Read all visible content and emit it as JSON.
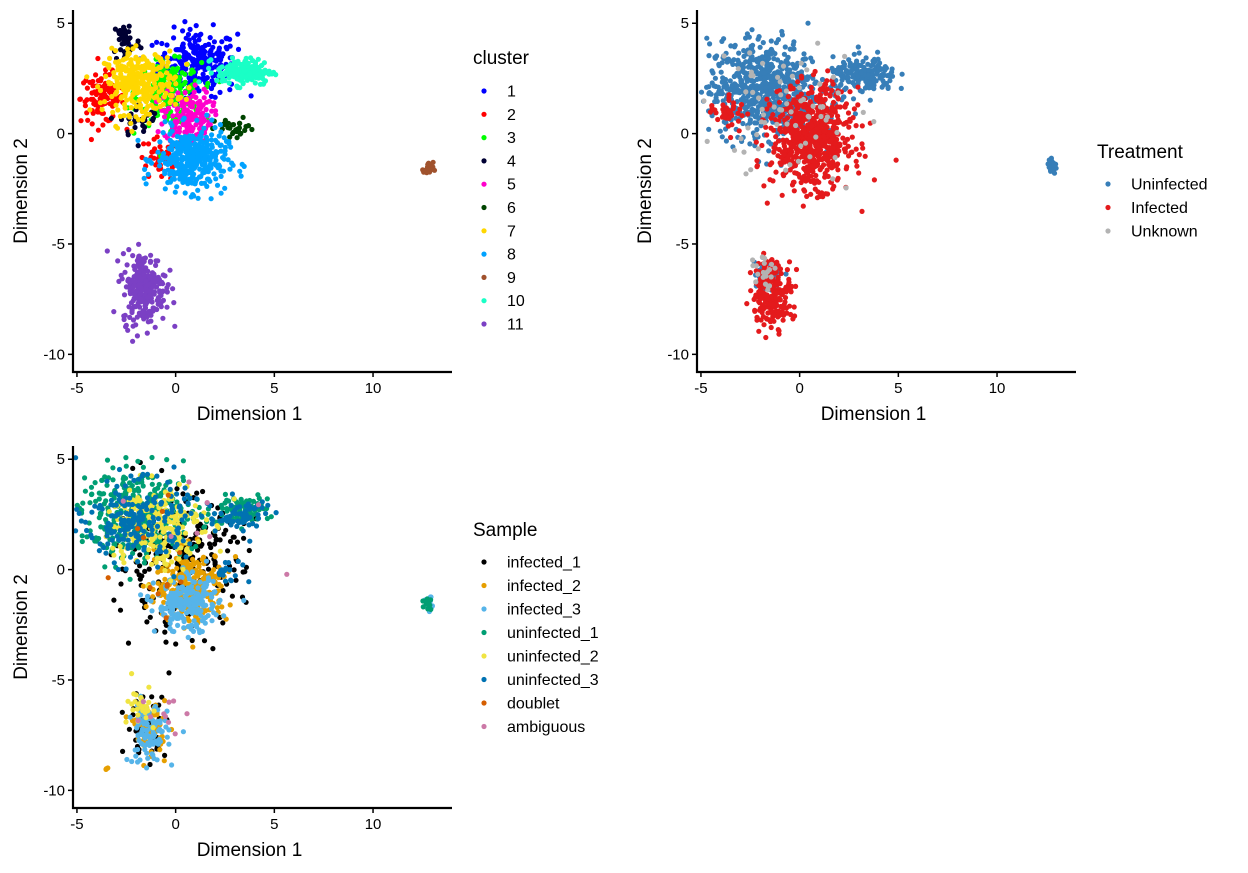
{
  "chart_data": [
    {
      "type": "scatter",
      "xlabel": "Dimension 1",
      "ylabel": "Dimension 2",
      "xlim": [
        -5.2,
        14
      ],
      "ylim": [
        -10.8,
        5.6
      ],
      "xticks": [
        "-5",
        "0",
        "5",
        "10"
      ],
      "xtick_values": [
        -5,
        0,
        5,
        10
      ],
      "yticks": [
        "5",
        "0",
        "-5",
        "-10"
      ],
      "ytick_values": [
        5,
        0,
        -5,
        -10
      ],
      "legend_title": "cluster",
      "legend_position": "right",
      "series": [
        {
          "name": "1",
          "color": "#0000ff",
          "clusters": [
            {
              "cx": 1.1,
              "cy": 3.2,
              "sx": 1.0,
              "sy": 0.75,
              "n": 260
            }
          ]
        },
        {
          "name": "2",
          "color": "#ff0000",
          "clusters": [
            {
              "cx": -3.7,
              "cy": 1.6,
              "sx": 0.55,
              "sy": 0.55,
              "n": 110
            },
            {
              "cx": -0.8,
              "cy": -1.2,
              "sx": 0.6,
              "sy": 0.5,
              "n": 40
            }
          ]
        },
        {
          "name": "3",
          "color": "#00ff00",
          "clusters": [
            {
              "cx": -0.3,
              "cy": 1.8,
              "sx": 0.8,
              "sy": 0.7,
              "n": 200
            }
          ]
        },
        {
          "name": "4",
          "color": "#000033",
          "clusters": [
            {
              "cx": -2.5,
              "cy": 4.2,
              "sx": 0.35,
              "sy": 0.5,
              "n": 45
            },
            {
              "cx": -1.8,
              "cy": 0.6,
              "sx": 0.5,
              "sy": 0.4,
              "n": 30
            }
          ]
        },
        {
          "name": "5",
          "color": "#ff00cc",
          "clusters": [
            {
              "cx": 0.6,
              "cy": 0.8,
              "sx": 0.6,
              "sy": 0.6,
              "n": 160
            }
          ]
        },
        {
          "name": "6",
          "color": "#004400",
          "clusters": [
            {
              "cx": 3.0,
              "cy": 0.2,
              "sx": 0.5,
              "sy": 0.25,
              "n": 30
            }
          ]
        },
        {
          "name": "7",
          "color": "#ffd700",
          "clusters": [
            {
              "cx": -1.8,
              "cy": 2.3,
              "sx": 0.9,
              "sy": 0.7,
              "n": 320
            }
          ]
        },
        {
          "name": "8",
          "color": "#00a2ff",
          "clusters": [
            {
              "cx": 0.8,
              "cy": -1.2,
              "sx": 0.9,
              "sy": 0.7,
              "n": 340
            }
          ]
        },
        {
          "name": "9",
          "color": "#a0522d",
          "clusters": [
            {
              "cx": 12.8,
              "cy": -1.6,
              "sx": 0.12,
              "sy": 0.15,
              "n": 25
            }
          ]
        },
        {
          "name": "10",
          "color": "#1affc6",
          "clusters": [
            {
              "cx": 3.5,
              "cy": 2.8,
              "sx": 0.7,
              "sy": 0.3,
              "n": 170
            }
          ]
        },
        {
          "name": "11",
          "color": "#7b40c4",
          "clusters": [
            {
              "cx": -1.6,
              "cy": -7.0,
              "sx": 0.55,
              "sy": 0.8,
              "n": 260
            }
          ]
        }
      ]
    },
    {
      "type": "scatter",
      "xlabel": "Dimension 1",
      "ylabel": "Dimension 2",
      "xlim": [
        -5.2,
        14
      ],
      "ylim": [
        -10.8,
        5.6
      ],
      "xticks": [
        "-5",
        "0",
        "5",
        "10"
      ],
      "xtick_values": [
        -5,
        0,
        5,
        10
      ],
      "yticks": [
        "5",
        "0",
        "-5",
        "-10"
      ],
      "ytick_values": [
        5,
        0,
        -5,
        -10
      ],
      "legend_title": "Treatment",
      "legend_position": "right",
      "series": [
        {
          "name": "Uninfected",
          "color": "#377eb8",
          "clusters": [
            {
              "cx": -1.8,
              "cy": 2.0,
              "sx": 1.4,
              "sy": 1.1,
              "n": 700
            },
            {
              "cx": 3.3,
              "cy": 2.6,
              "sx": 0.8,
              "sy": 0.4,
              "n": 180
            },
            {
              "cx": 12.8,
              "cy": -1.5,
              "sx": 0.12,
              "sy": 0.15,
              "n": 25
            },
            {
              "cx": -1.6,
              "cy": -6.6,
              "sx": 0.4,
              "sy": 0.6,
              "n": 50
            }
          ]
        },
        {
          "name": "Infected",
          "color": "#e41a1c",
          "clusters": [
            {
              "cx": 0.6,
              "cy": -0.2,
              "sx": 1.0,
              "sy": 1.1,
              "n": 700
            },
            {
              "cx": -1.4,
              "cy": -7.2,
              "sx": 0.5,
              "sy": 0.75,
              "n": 220
            },
            {
              "cx": -3.6,
              "cy": 1.0,
              "sx": 0.5,
              "sy": 0.4,
              "n": 40
            }
          ]
        },
        {
          "name": "Unknown",
          "color": "#b3b3b3",
          "clusters": [
            {
              "cx": -0.5,
              "cy": 1.0,
              "sx": 1.8,
              "sy": 1.6,
              "n": 70
            },
            {
              "cx": -2.0,
              "cy": -6.2,
              "sx": 0.4,
              "sy": 0.4,
              "n": 20
            }
          ]
        }
      ]
    },
    {
      "type": "scatter",
      "xlabel": "Dimension 1",
      "ylabel": "Dimension 2",
      "xlim": [
        -5.2,
        14
      ],
      "ylim": [
        -10.8,
        5.6
      ],
      "xticks": [
        "-5",
        "0",
        "5",
        "10"
      ],
      "xtick_values": [
        -5,
        0,
        5,
        10
      ],
      "yticks": [
        "5",
        "0",
        "-5",
        "-10"
      ],
      "ytick_values": [
        5,
        0,
        -5,
        -10
      ],
      "legend_title": "Sample",
      "legend_position": "right",
      "series": [
        {
          "name": "infected_1",
          "color": "#000000",
          "clusters": [
            {
              "cx": 0.2,
              "cy": 0.3,
              "sx": 1.6,
              "sy": 1.5,
              "n": 260
            },
            {
              "cx": -1.5,
              "cy": -7.0,
              "sx": 0.5,
              "sy": 0.7,
              "n": 60
            }
          ]
        },
        {
          "name": "infected_2",
          "color": "#e69f00",
          "clusters": [
            {
              "cx": 0.8,
              "cy": -0.8,
              "sx": 0.9,
              "sy": 0.8,
              "n": 260
            },
            {
              "cx": -1.3,
              "cy": -7.2,
              "sx": 0.4,
              "sy": 0.6,
              "n": 60
            },
            {
              "cx": -3.5,
              "cy": -9.0,
              "sx": 0.05,
              "sy": 0.05,
              "n": 4
            }
          ]
        },
        {
          "name": "infected_3",
          "color": "#56b4e9",
          "clusters": [
            {
              "cx": 0.6,
              "cy": -1.6,
              "sx": 0.8,
              "sy": 0.6,
              "n": 220
            },
            {
              "cx": -1.4,
              "cy": -7.4,
              "sx": 0.5,
              "sy": 0.7,
              "n": 100
            },
            {
              "cx": 12.9,
              "cy": -1.6,
              "sx": 0.12,
              "sy": 0.15,
              "n": 10
            }
          ]
        },
        {
          "name": "uninfected_1",
          "color": "#009e73",
          "clusters": [
            {
              "cx": -1.8,
              "cy": 2.5,
              "sx": 1.5,
              "sy": 1.0,
              "n": 340
            },
            {
              "cx": 3.3,
              "cy": 2.7,
              "sx": 0.7,
              "sy": 0.3,
              "n": 90
            },
            {
              "cx": 12.8,
              "cy": -1.5,
              "sx": 0.1,
              "sy": 0.15,
              "n": 12
            }
          ]
        },
        {
          "name": "uninfected_2",
          "color": "#f0e442",
          "clusters": [
            {
              "cx": -1.0,
              "cy": 2.0,
              "sx": 1.2,
              "sy": 1.0,
              "n": 200
            },
            {
              "cx": -1.6,
              "cy": -6.2,
              "sx": 0.4,
              "sy": 0.5,
              "n": 30
            }
          ]
        },
        {
          "name": "uninfected_3",
          "color": "#0072b2",
          "clusters": [
            {
              "cx": -2.0,
              "cy": 2.2,
              "sx": 1.3,
              "sy": 0.9,
              "n": 200
            },
            {
              "cx": 3.2,
              "cy": 2.4,
              "sx": 0.8,
              "sy": 0.4,
              "n": 60
            },
            {
              "cx": 2.8,
              "cy": 0.0,
              "sx": 0.5,
              "sy": 0.3,
              "n": 20
            }
          ]
        },
        {
          "name": "doublet",
          "color": "#d55e00",
          "clusters": [
            {
              "cx": -0.2,
              "cy": 0.5,
              "sx": 1.2,
              "sy": 1.2,
              "n": 12
            }
          ]
        },
        {
          "name": "ambiguous",
          "color": "#cc79a7",
          "clusters": [
            {
              "cx": -1.2,
              "cy": -6.2,
              "sx": 0.8,
              "sy": 0.5,
              "n": 10
            },
            {
              "cx": 1.0,
              "cy": 2.5,
              "sx": 2.0,
              "sy": 1.2,
              "n": 8
            }
          ]
        }
      ]
    }
  ]
}
